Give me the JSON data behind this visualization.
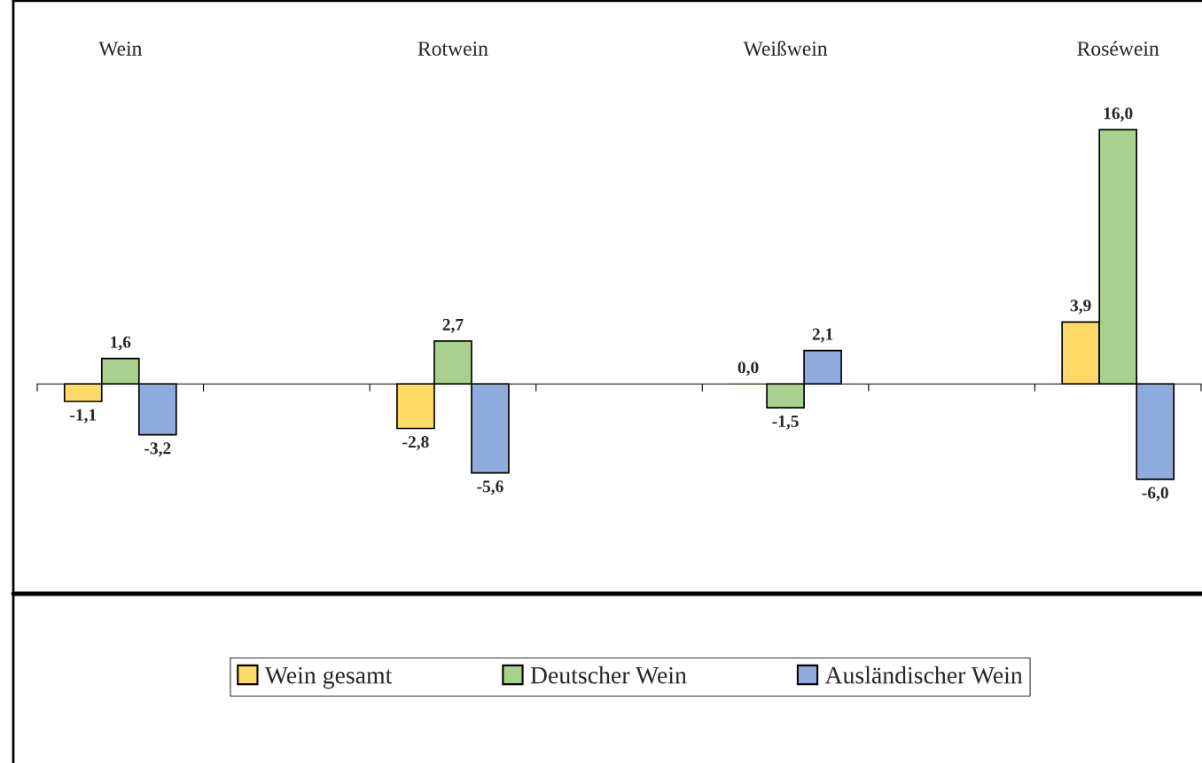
{
  "chart_data": {
    "type": "bar",
    "categories": [
      "Wein",
      null,
      "Rotwein",
      null,
      "Weißwein",
      null,
      "Roséwein"
    ],
    "series": [
      {
        "name": "Wein gesamt",
        "color": "#ffd966",
        "values": [
          -1.1,
          null,
          -2.8,
          null,
          0.0,
          null,
          3.9
        ],
        "value_labels": [
          "-1,1",
          null,
          "-2,8",
          null,
          "0,0",
          null,
          "3,9"
        ]
      },
      {
        "name": "Deutscher Wein",
        "color": "#a9d18e",
        "values": [
          1.6,
          null,
          2.7,
          null,
          -1.5,
          null,
          16.0
        ],
        "value_labels": [
          "1,6",
          null,
          "2,7",
          null,
          "-1,5",
          null,
          "16,0"
        ]
      },
      {
        "name": "Ausländischer Wein",
        "color": "#8faadc",
        "values": [
          -3.2,
          null,
          -5.6,
          null,
          2.1,
          null,
          -6.0
        ],
        "value_labels": [
          "-3,2",
          null,
          "-5,6",
          null,
          "2,1",
          null,
          "-6,0"
        ]
      }
    ],
    "legend": "bottom",
    "grid": false
  }
}
